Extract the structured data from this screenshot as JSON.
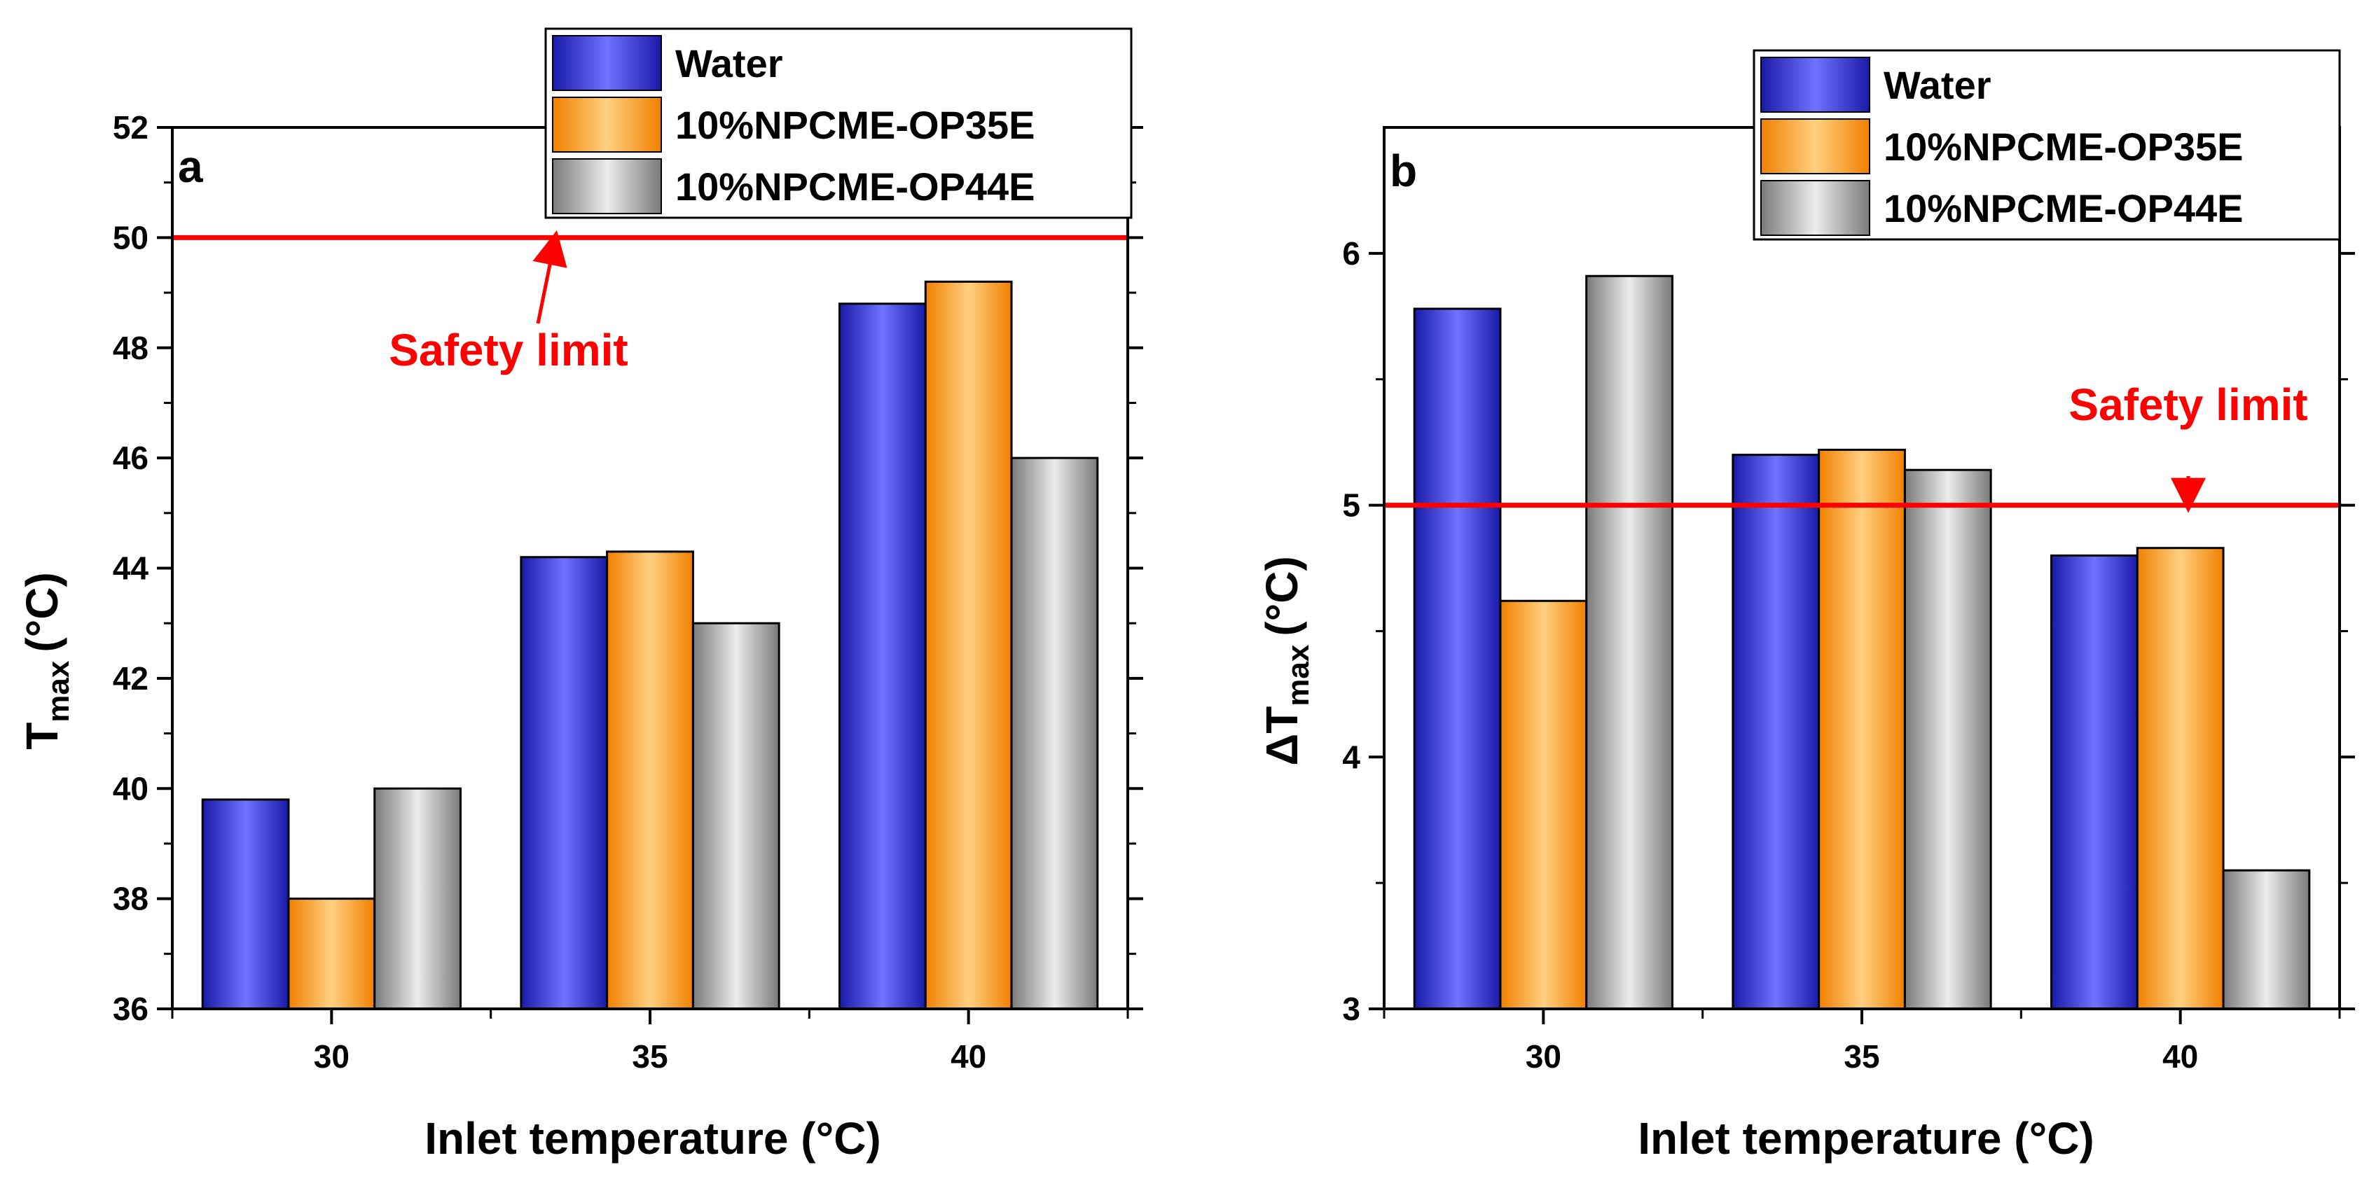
{
  "chart_data": [
    {
      "type": "bar",
      "panel_label": "a",
      "categories": [
        "30",
        "35",
        "40"
      ],
      "series": [
        {
          "name": "Water",
          "values": [
            39.8,
            44.2,
            48.8
          ]
        },
        {
          "name": "10%NPCME-OP35E",
          "values": [
            38.0,
            44.3,
            49.2
          ]
        },
        {
          "name": "10%NPCME-OP44E",
          "values": [
            40.0,
            43.0,
            46.0
          ]
        }
      ],
      "xlabel": "Inlet temperature (°C)",
      "ylabel_main": "T",
      "ylabel_sub": "max",
      "ylabel_unit": "(°C)",
      "ylim": [
        36,
        52
      ],
      "yticks": [
        "36",
        "38",
        "40",
        "42",
        "44",
        "46",
        "48",
        "50",
        "52"
      ],
      "safety_limit": {
        "value": 50,
        "label": "Safety limit"
      },
      "legend_position": "top-right"
    },
    {
      "type": "bar",
      "panel_label": "b",
      "categories": [
        "30",
        "35",
        "40"
      ],
      "series": [
        {
          "name": "Water",
          "values": [
            5.78,
            5.2,
            4.8
          ]
        },
        {
          "name": "10%NPCME-OP35E",
          "values": [
            4.62,
            5.22,
            4.83
          ]
        },
        {
          "name": "10%NPCME-OP44E",
          "values": [
            5.91,
            5.14,
            3.55
          ]
        }
      ],
      "xlabel": "Inlet temperature (°C)",
      "ylabel_main": "ΔT",
      "ylabel_sub": "max",
      "ylabel_unit": "(°C)",
      "ylim": [
        3,
        6.5
      ],
      "yticks": [
        "3",
        "4",
        "5",
        "6"
      ],
      "safety_limit": {
        "value": 5,
        "label": "Safety limit"
      },
      "legend_position": "top-right"
    }
  ],
  "colors": {
    "water": "#3b3fd9",
    "op35e": "#ff9a1a",
    "op44e": "#a9a9a9",
    "safety": "#ff0000",
    "axis": "#000000"
  }
}
